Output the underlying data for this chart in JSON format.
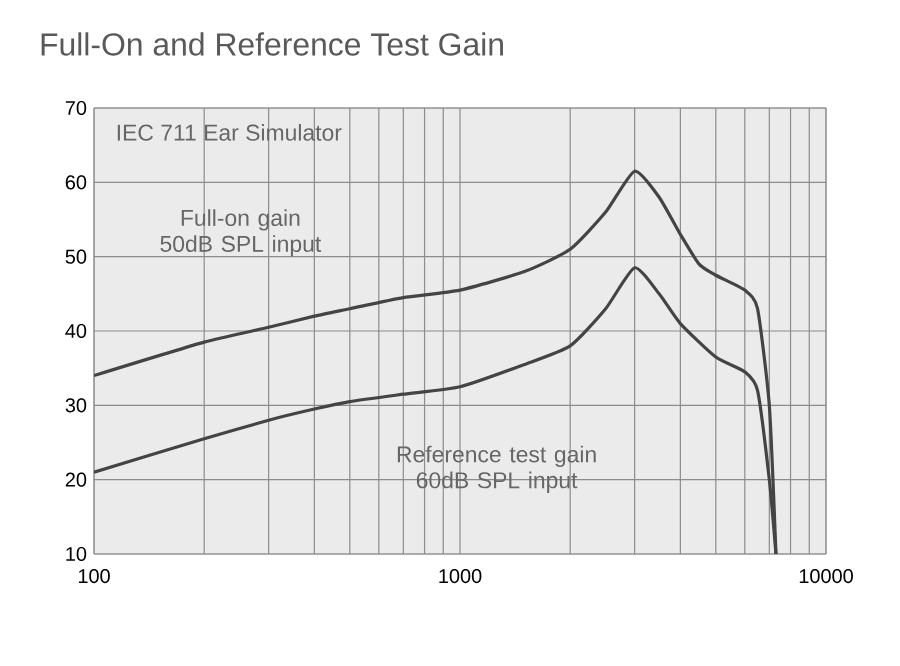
{
  "chart_data": {
    "type": "line",
    "title": "Full-On and Reference Test Gain",
    "annotations": [
      "IEC 711 Ear Simulator"
    ],
    "log": "x",
    "xlim": [
      100,
      10000
    ],
    "xticks": [
      100,
      1000,
      10000
    ],
    "ylim": [
      10,
      70
    ],
    "yticks": [
      10,
      20,
      30,
      40,
      50,
      60,
      70
    ],
    "grid": true,
    "marker": "none",
    "line_style": "solid",
    "series": [
      {
        "name": "Full-on gain 50dB SPL input",
        "color": "#444444",
        "x": [
          100,
          200,
          300,
          400,
          500,
          700,
          1000,
          1500,
          2000,
          2500,
          3000,
          3500,
          4000,
          4500,
          5000,
          6000,
          6500,
          7000,
          7300
        ],
        "values": [
          34,
          38.5,
          40.5,
          42,
          43,
          44.5,
          45.5,
          48,
          51,
          56,
          61.5,
          58,
          53,
          49,
          47.5,
          45.5,
          43,
          30,
          10
        ]
      },
      {
        "name": "Reference test gain 60dB SPL input",
        "color": "#444444",
        "x": [
          100,
          200,
          300,
          400,
          500,
          700,
          1000,
          1500,
          2000,
          2500,
          3000,
          3500,
          4000,
          5000,
          6000,
          6500,
          7000,
          7300
        ],
        "values": [
          21,
          25.5,
          28,
          29.5,
          30.5,
          31.5,
          32.5,
          35.5,
          38,
          43,
          48.5,
          45,
          41,
          36.5,
          34.5,
          32,
          20,
          10
        ]
      }
    ]
  }
}
